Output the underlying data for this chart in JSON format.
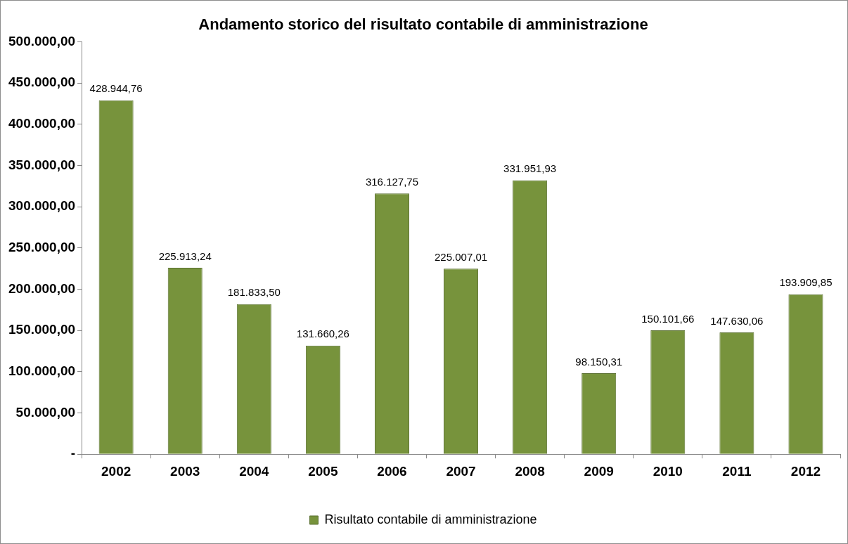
{
  "chart_data": {
    "type": "bar",
    "title": "Andamento storico del risultato contabile di amministrazione",
    "categories": [
      "2002",
      "2003",
      "2004",
      "2005",
      "2006",
      "2007",
      "2008",
      "2009",
      "2010",
      "2011",
      "2012"
    ],
    "series": [
      {
        "name": "Risultato contabile di amministrazione",
        "color": "#77933c",
        "values": [
          428944.76,
          225913.24,
          181833.5,
          131660.26,
          316127.75,
          225007.01,
          331951.93,
          98150.31,
          150101.66,
          147630.06,
          193909.85
        ],
        "value_labels": [
          "428.944,76",
          "225.913,24",
          "181.833,50",
          "131.660,26",
          "316.127,75",
          "225.007,01",
          "331.951,93",
          "98.150,31",
          "150.101,66",
          "147.630,06",
          "193.909,85"
        ]
      }
    ],
    "ylim": [
      0,
      500000
    ],
    "yticks": [
      {
        "value": 0,
        "label": "-"
      },
      {
        "value": 50000,
        "label": "50.000,00"
      },
      {
        "value": 100000,
        "label": "100.000,00"
      },
      {
        "value": 150000,
        "label": "150.000,00"
      },
      {
        "value": 200000,
        "label": "200.000,00"
      },
      {
        "value": 250000,
        "label": "250.000,00"
      },
      {
        "value": 300000,
        "label": "300.000,00"
      },
      {
        "value": 350000,
        "label": "350.000,00"
      },
      {
        "value": 400000,
        "label": "400.000,00"
      },
      {
        "value": 450000,
        "label": "450.000,00"
      },
      {
        "value": 500000,
        "label": "500.000,00"
      }
    ],
    "grid": false,
    "legend": "bottom"
  }
}
